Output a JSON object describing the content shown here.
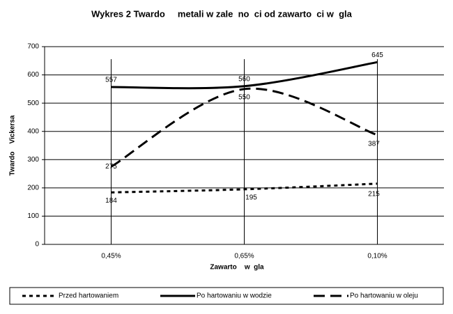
{
  "chart_data": {
    "type": "line",
    "title": "Wykres 2 Twardo     metali w zale  no  ci od zawarto  ci w  gla",
    "x_label": "Zawarto    w  gla",
    "y_label": "Twardo    Vickersa",
    "categories": [
      "0,45%",
      "0,65%",
      "0,10%"
    ],
    "ylim": [
      0,
      700
    ],
    "yticks": [
      0,
      100,
      200,
      300,
      400,
      500,
      600,
      700
    ],
    "grid": true,
    "series": [
      {
        "name": "Przed hartowaniem",
        "color": "#000000",
        "dash": "dotted",
        "values": [
          184,
          195,
          215
        ]
      },
      {
        "name": "Po hartowaniu w wodzie",
        "color": "#000000",
        "dash": "solid",
        "values": [
          557,
          560,
          645
        ]
      },
      {
        "name": "Po hartowaniu w oleju",
        "color": "#000000",
        "dash": "dashed",
        "values": [
          275,
          550,
          387
        ]
      }
    ]
  }
}
